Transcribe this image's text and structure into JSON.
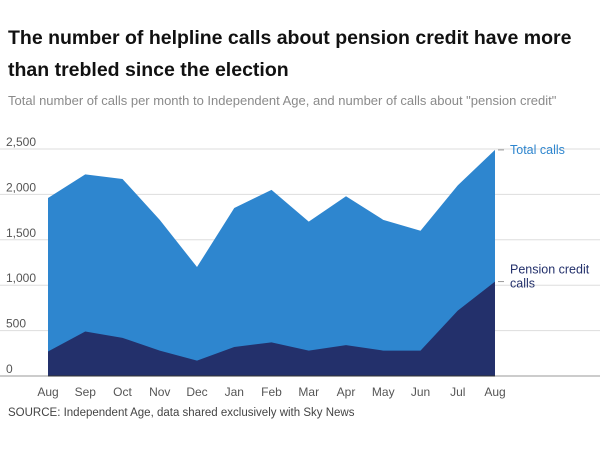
{
  "title": "The number of helpline calls about pension credit have more than trebled since the election",
  "subtitle": "Total number of calls per month to Independent Age, and number of calls about \"pension credit\"",
  "source": "SOURCE: Independent Age, data shared exclusively with Sky News",
  "colors": {
    "total": "#2e86cf",
    "pension": "#23306b",
    "grid": "#dddddd",
    "axis": "#555555"
  },
  "chart_data": {
    "type": "area",
    "categories": [
      "Aug",
      "Sep",
      "Oct",
      "Nov",
      "Dec",
      "Jan",
      "Feb",
      "Mar",
      "Apr",
      "May",
      "Jun",
      "Jul",
      "Aug"
    ],
    "series": [
      {
        "name": "Total calls",
        "values": [
          1960,
          2220,
          2170,
          1720,
          1200,
          1850,
          2050,
          1700,
          1980,
          1720,
          1600,
          2100,
          2490
        ]
      },
      {
        "name": "Pension credit calls",
        "values": [
          270,
          490,
          420,
          280,
          170,
          320,
          370,
          280,
          340,
          280,
          280,
          720,
          1040
        ]
      }
    ],
    "yticks": [
      "0",
      "500",
      "1,000",
      "1,500",
      "2,000",
      "2,500"
    ],
    "ylim": [
      0,
      2500
    ],
    "grid": true,
    "legend": "inline-right",
    "series_labels": [
      "Total calls",
      "Pension credit calls"
    ]
  }
}
